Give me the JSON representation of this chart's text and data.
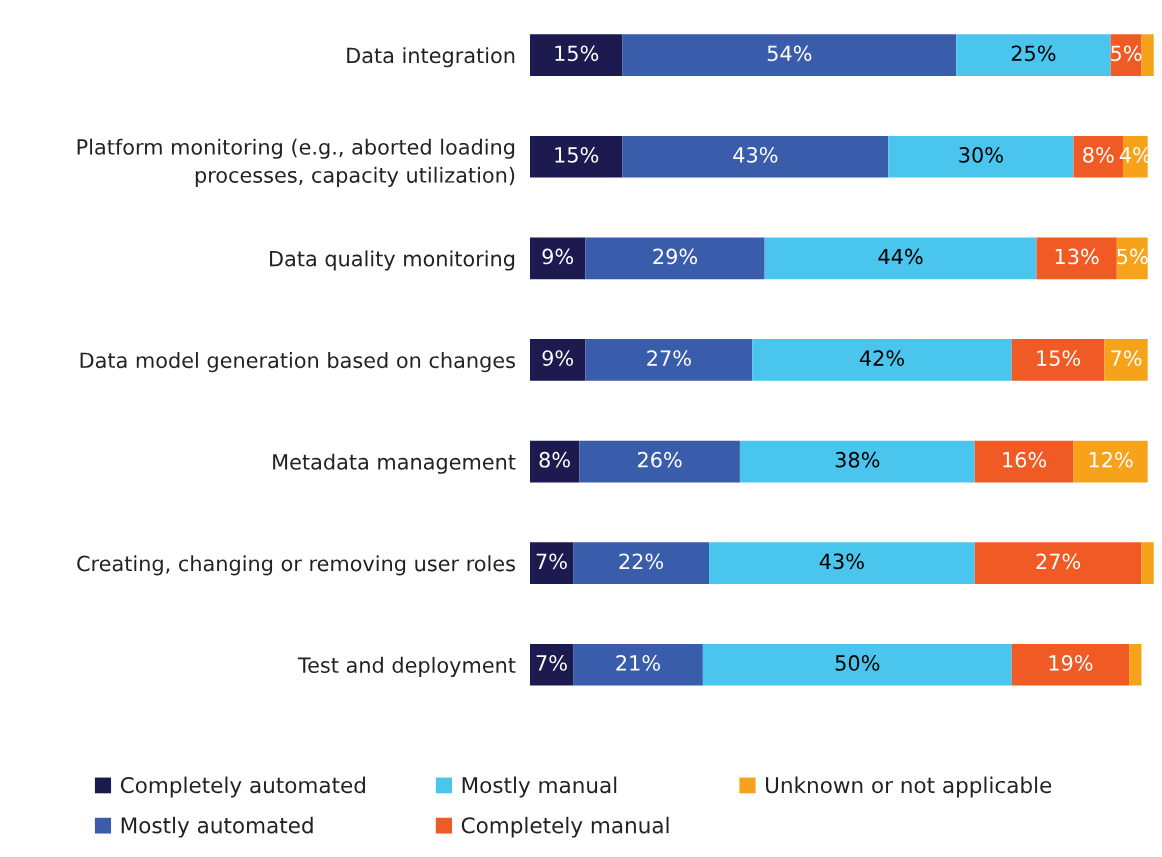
{
  "chart_data": {
    "type": "bar",
    "orientation": "horizontal",
    "stacked": true,
    "legend": "bottom",
    "grid": false,
    "tick_labels": "y",
    "categories": [
      "Data integration",
      "Platform monitoring (e.g., aborted loading\nprocesses, capacity utilization)",
      "Data quality monitoring",
      "Data model generation based on changes",
      "Metadata management",
      "Creating, changing or removing user roles",
      "Test and deployment"
    ],
    "series": [
      {
        "name": "Completely automated",
        "color": "#1c1a4f",
        "values": [
          15,
          15,
          9,
          9,
          8,
          7,
          7
        ],
        "value_labels": [
          "15%",
          "15%",
          "9%",
          "9%",
          "8%",
          "7%",
          "7%"
        ]
      },
      {
        "name": "Mostly automated",
        "color": "#3a5dab",
        "values": [
          54,
          43,
          29,
          27,
          26,
          22,
          21
        ],
        "value_labels": [
          "54%",
          "43%",
          "29%",
          "27%",
          "26%",
          "22%",
          "21%"
        ]
      },
      {
        "name": "Mostly manual",
        "color": "#4ac6ee",
        "values": [
          25,
          30,
          44,
          42,
          38,
          43,
          50
        ],
        "value_labels": [
          "25%",
          "30%",
          "44%",
          "42%",
          "38%",
          "43%",
          "50%"
        ]
      },
      {
        "name": "Completely manual",
        "color": "#f05a24",
        "values": [
          5,
          8,
          13,
          15,
          16,
          27,
          19
        ],
        "value_labels": [
          "5%",
          "8%",
          "13%",
          "15%",
          "16%",
          "27%",
          "19%"
        ]
      },
      {
        "name": "Unknown or not applicable",
        "color": "#f7a21b",
        "values": [
          2,
          4,
          5,
          7,
          12,
          2,
          2
        ],
        "value_labels": [
          null,
          "4%",
          "5%",
          "7%",
          "12%",
          null,
          null
        ]
      }
    ]
  }
}
